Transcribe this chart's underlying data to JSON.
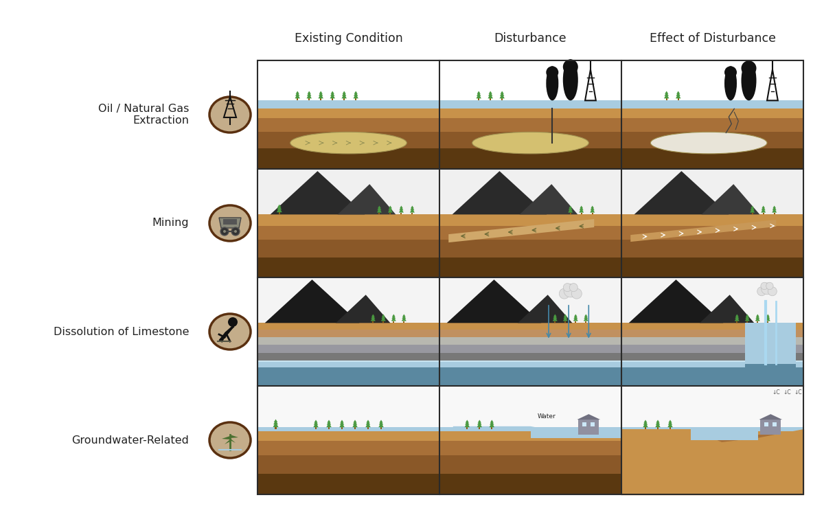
{
  "col_headers": [
    "Existing Condition",
    "Disturbance",
    "Effect of Disturbance"
  ],
  "row_labels": [
    "Oil / Natural Gas\nExtraction",
    "Mining",
    "Dissolution of Limestone",
    "Groundwater-Related"
  ],
  "bg_color": "#ffffff",
  "grid_color": "#2a2a2a",
  "header_fontsize": 12.5,
  "label_fontsize": 11.5,
  "icon_bg_color": "#c4ad8a",
  "icon_border_color": "#5a3010",
  "colors": {
    "sky_white": "#ffffff",
    "water_blue": "#a8cce0",
    "water_light": "#c8e4f0",
    "tree_green": "#4a9940",
    "tree_dark": "#2d7a2d",
    "soil_top": "#c8924a",
    "soil_mid": "#a87038",
    "soil_deep": "#8a5828",
    "soil_dark": "#5a3810",
    "rock_dark": "#2a2a2a",
    "rock_mid": "#484848",
    "rock_light": "#888880",
    "limestone_light": "#b8b8b0",
    "limestone_mid": "#9898a0",
    "limestone_dark": "#787878",
    "oil_sand": "#d4c070",
    "oil_sand2": "#c4b060",
    "black": "#111111",
    "white": "#ffffff",
    "cloud_white": "#e8e8e8",
    "building_gray": "#9090a0",
    "brown_dark": "#6b3d1e"
  }
}
